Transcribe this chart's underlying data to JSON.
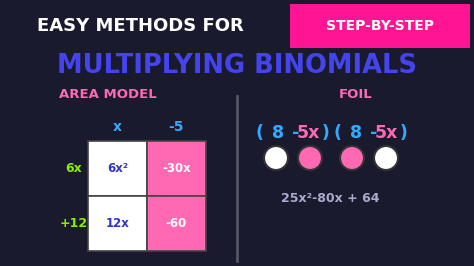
{
  "bg_color": "#1a1a2e",
  "bg_color2": "#16213e",
  "title1": "EASY METHODS FOR",
  "title2": "MULTIPLYING BINOMIALS",
  "step_label": "STEP-BY-STEP",
  "step_bg": "#ff1493",
  "label_left": "AREA MODEL",
  "label_right": "FOIL",
  "label_color": "#ff69b4",
  "title1_color": "#ffffff",
  "title2_color": "#4444ee",
  "col_headers": [
    "x",
    "-5"
  ],
  "row_headers": [
    "6x",
    "+12"
  ],
  "cell_values_top": [
    "6x²",
    "-30x"
  ],
  "cell_values_bot": [
    "12x",
    "-60"
  ],
  "cell_top_left_bg": "#ffffff",
  "cell_top_right_bg": "#ff69b4",
  "cell_bot_left_bg": "#ffffff",
  "cell_bot_right_bg": "#ff69b4",
  "cell_top_left_color": "#3333cc",
  "cell_top_right_color": "#ffffff",
  "cell_bot_left_color": "#3333cc",
  "cell_bot_right_color": "#ffffff",
  "col_header_color": "#33aaff",
  "row_header_color": "#88ee00",
  "pink": "#ff69b4",
  "blue": "#33aaff",
  "darkblue": "#3333ee",
  "green": "#88ee00",
  "white": "#ffffff",
  "divider_color": "#555566",
  "result_color": "#aaaacc",
  "foil_blue": "#33aaff",
  "foil_pink": "#ff69b4"
}
